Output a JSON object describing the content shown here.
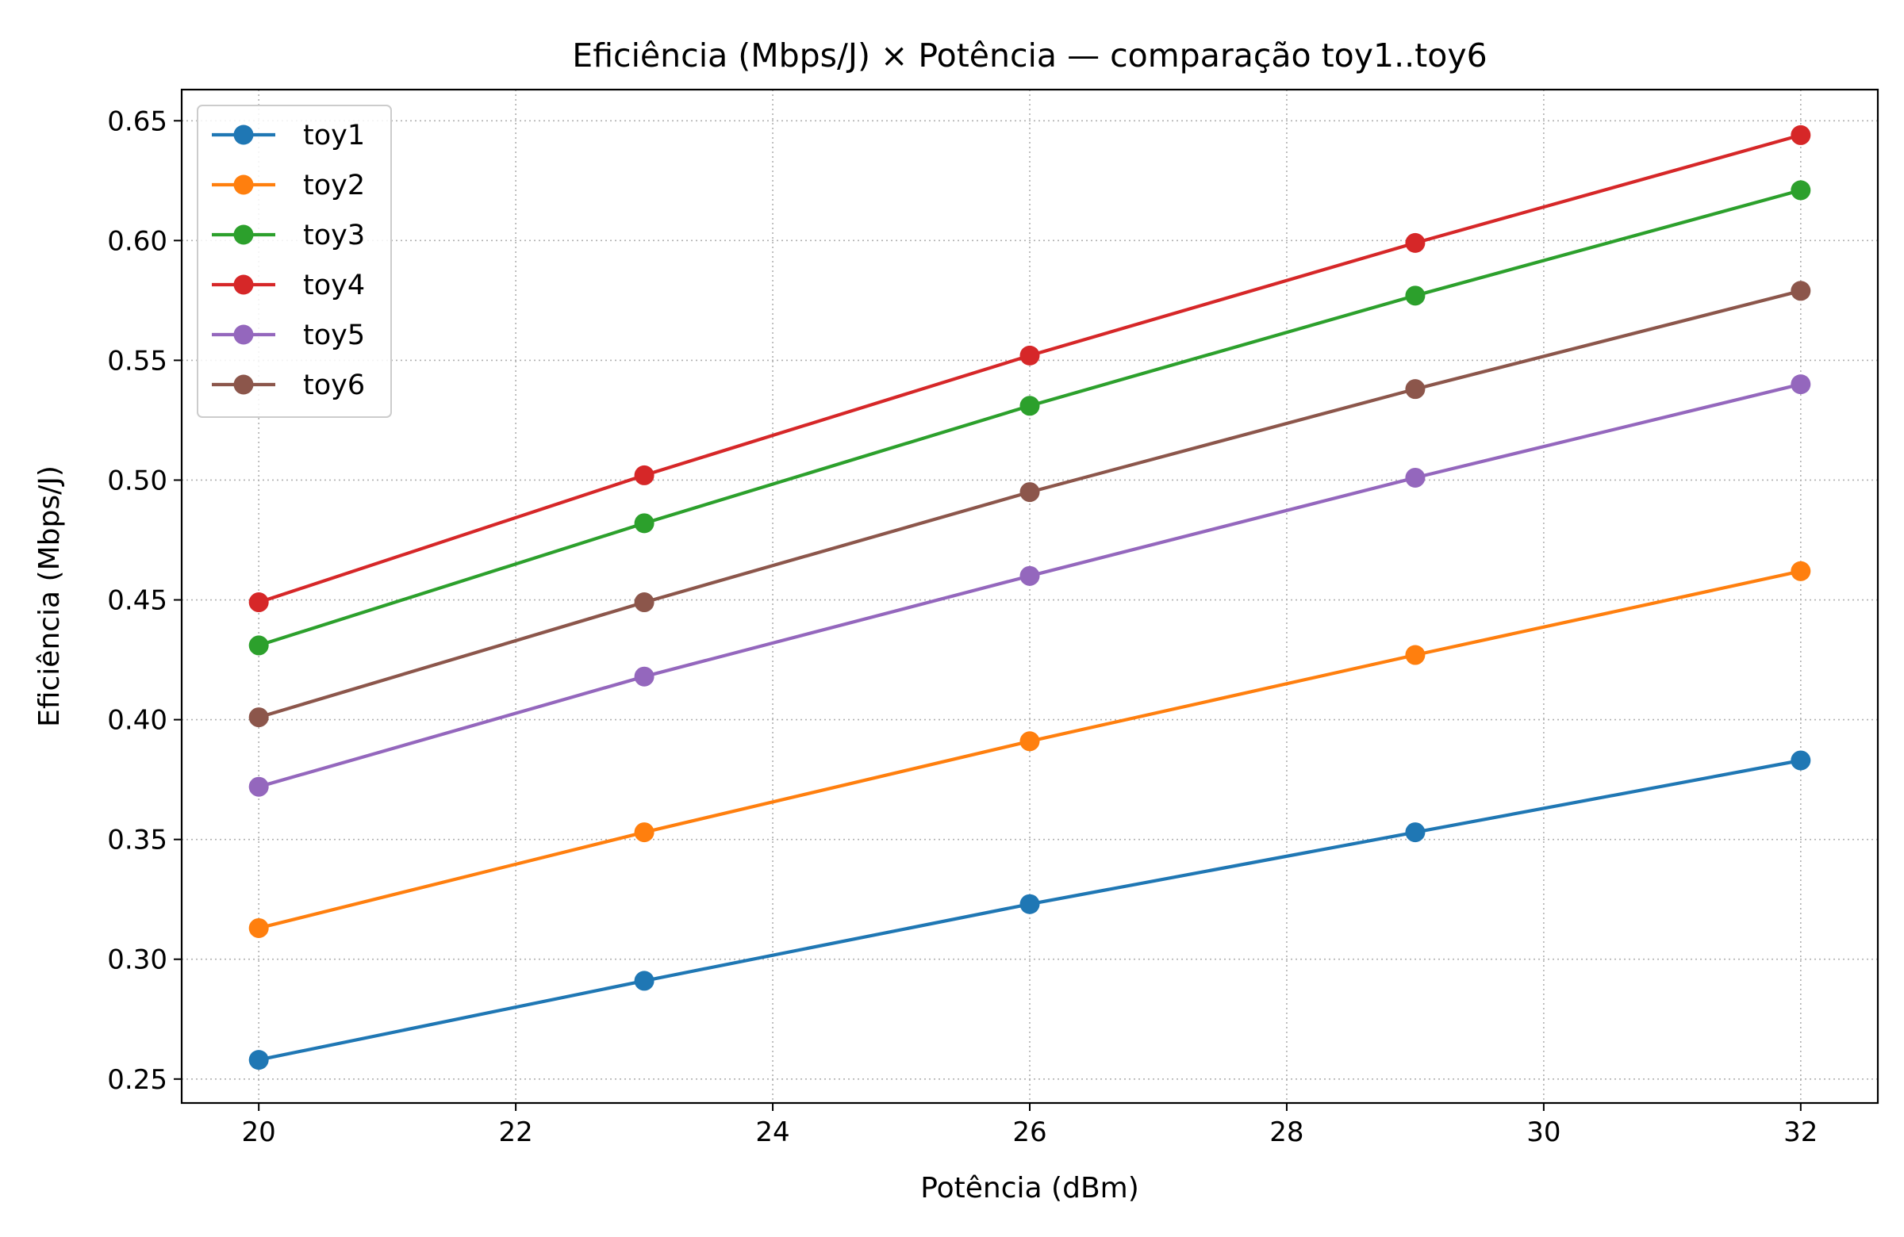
{
  "chart_data": {
    "type": "line",
    "title": "Eficiência (Mbps/J) × Potência — comparação toy1..toy6",
    "xlabel": "Potência (dBm)",
    "ylabel": "Eficiência (Mbps/J)",
    "x": [
      20,
      23,
      26,
      29,
      32
    ],
    "xlim": [
      19.4,
      32.6
    ],
    "ylim": [
      0.24,
      0.663
    ],
    "xticks": [
      20,
      22,
      24,
      26,
      28,
      30,
      32
    ],
    "xtick_labels": [
      "20",
      "22",
      "24",
      "26",
      "28",
      "30",
      "32"
    ],
    "yticks": [
      0.25,
      0.3,
      0.35,
      0.4,
      0.45,
      0.5,
      0.55,
      0.6,
      0.65
    ],
    "ytick_labels": [
      "0.25",
      "0.30",
      "0.35",
      "0.40",
      "0.45",
      "0.50",
      "0.55",
      "0.60",
      "0.65"
    ],
    "grid": true,
    "legend_position": "top-left",
    "series": [
      {
        "name": "toy1",
        "color": "#1f77b4",
        "values": [
          0.258,
          0.291,
          0.323,
          0.353,
          0.383
        ]
      },
      {
        "name": "toy2",
        "color": "#ff7f0e",
        "values": [
          0.313,
          0.353,
          0.391,
          0.427,
          0.462
        ]
      },
      {
        "name": "toy3",
        "color": "#2ca02c",
        "values": [
          0.431,
          0.482,
          0.531,
          0.577,
          0.621
        ]
      },
      {
        "name": "toy4",
        "color": "#d62728",
        "values": [
          0.449,
          0.502,
          0.552,
          0.599,
          0.644
        ]
      },
      {
        "name": "toy5",
        "color": "#9467bd",
        "values": [
          0.372,
          0.418,
          0.46,
          0.501,
          0.54
        ]
      },
      {
        "name": "toy6",
        "color": "#8c564b",
        "values": [
          0.401,
          0.449,
          0.495,
          0.538,
          0.579
        ]
      }
    ]
  }
}
